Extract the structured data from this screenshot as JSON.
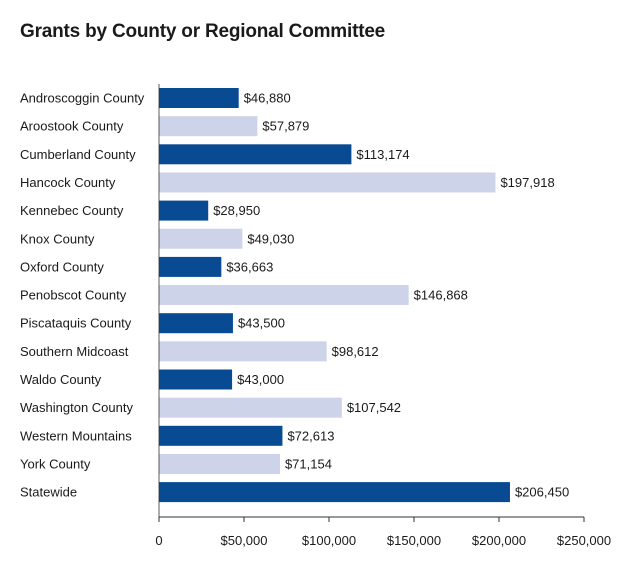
{
  "chart_data": {
    "type": "bar",
    "orientation": "horizontal",
    "title": "Grants by County or Regional Committee",
    "categories": [
      "Androscoggin County",
      "Aroostook County",
      "Cumberland County",
      "Hancock County",
      "Kennebec County",
      "Knox County",
      "Oxford County",
      "Penobscot County",
      "Piscataquis County",
      "Southern Midcoast",
      "Waldo County",
      "Washington County",
      "Western Mountains",
      "York County",
      "Statewide"
    ],
    "values": [
      46880,
      57879,
      113174,
      197918,
      28950,
      49030,
      36663,
      146868,
      43500,
      98612,
      43000,
      107542,
      72613,
      71154,
      206450
    ],
    "value_labels": [
      "$46,880",
      "$57,879",
      "$113,174",
      "$197,918",
      "$28,950",
      "$49,030",
      "$36,663",
      "$146,868",
      "$43,500",
      "$98,612",
      "$43,000",
      "$107,542",
      "$72,613",
      "$71,154",
      "$206,450"
    ],
    "xlim": [
      0,
      250000
    ],
    "x_ticks": [
      0,
      50000,
      100000,
      150000,
      200000,
      250000
    ],
    "x_tick_labels": [
      "0",
      "$50,000",
      "$100,000",
      "$150,000",
      "$200,000",
      "$250,000"
    ],
    "xlabel": "",
    "ylabel": "",
    "grid": false,
    "legend": "none",
    "bar_colors": [
      "#084b93",
      "#cdd3e8"
    ],
    "text_color": "#1a1a1a",
    "axis_color": "#333333"
  }
}
